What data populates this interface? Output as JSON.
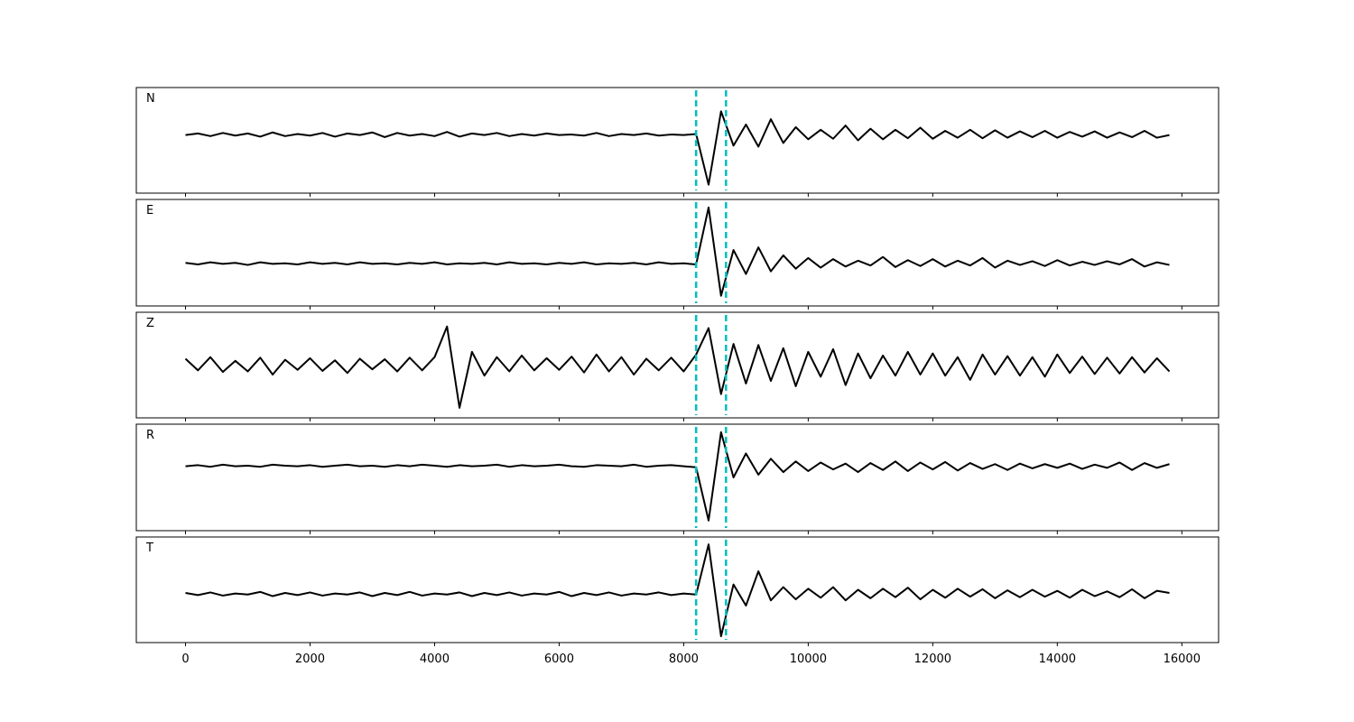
{
  "chart_data": {
    "type": "line",
    "x": [
      0,
      200,
      400,
      600,
      800,
      1000,
      1200,
      1400,
      1600,
      1800,
      2000,
      2200,
      2400,
      2600,
      2800,
      3000,
      3200,
      3400,
      3600,
      3800,
      4000,
      4200,
      4400,
      4600,
      4800,
      5000,
      5200,
      5400,
      5600,
      5800,
      6000,
      6200,
      6400,
      6600,
      6800,
      7000,
      7200,
      7400,
      7600,
      7800,
      8000,
      8200,
      8400,
      8600,
      8800,
      9000,
      9200,
      9400,
      9600,
      9800,
      10000,
      10200,
      10400,
      10600,
      10800,
      11000,
      11200,
      11400,
      11600,
      11800,
      12000,
      12200,
      12400,
      12600,
      12800,
      13000,
      13200,
      13400,
      13600,
      13800,
      14000,
      14200,
      14400,
      14600,
      14800,
      15000,
      15200,
      15400,
      15600,
      15800
    ],
    "xlim": [
      -790,
      16590
    ],
    "xticks": [
      0,
      2000,
      4000,
      6000,
      8000,
      10000,
      12000,
      14000,
      16000
    ],
    "ylim": [
      -1,
      1
    ],
    "vlines": [
      8200,
      8680
    ],
    "vline_color": "#00bfbf",
    "series": [
      {
        "name": "N",
        "color": "#000000",
        "values": [
          0.1,
          0.13,
          0.08,
          0.14,
          0.09,
          0.13,
          0.07,
          0.15,
          0.08,
          0.12,
          0.09,
          0.14,
          0.07,
          0.13,
          0.1,
          0.15,
          0.06,
          0.14,
          0.09,
          0.12,
          0.08,
          0.16,
          0.07,
          0.13,
          0.1,
          0.14,
          0.08,
          0.12,
          0.09,
          0.13,
          0.1,
          0.11,
          0.09,
          0.14,
          0.08,
          0.12,
          0.1,
          0.13,
          0.09,
          0.11,
          0.1,
          0.12,
          -0.84,
          0.55,
          -0.1,
          0.3,
          -0.12,
          0.4,
          -0.05,
          0.25,
          0.02,
          0.2,
          0.03,
          0.28,
          0.0,
          0.22,
          0.02,
          0.2,
          0.04,
          0.24,
          0.03,
          0.18,
          0.05,
          0.2,
          0.04,
          0.19,
          0.05,
          0.17,
          0.06,
          0.18,
          0.05,
          0.16,
          0.07,
          0.17,
          0.05,
          0.15,
          0.06,
          0.18,
          0.05,
          0.1
        ]
      },
      {
        "name": "E",
        "color": "#000000",
        "values": [
          -0.19,
          -0.22,
          -0.18,
          -0.21,
          -0.19,
          -0.23,
          -0.18,
          -0.21,
          -0.2,
          -0.22,
          -0.18,
          -0.21,
          -0.19,
          -0.22,
          -0.18,
          -0.21,
          -0.2,
          -0.22,
          -0.19,
          -0.21,
          -0.18,
          -0.22,
          -0.2,
          -0.21,
          -0.19,
          -0.22,
          -0.18,
          -0.21,
          -0.2,
          -0.22,
          -0.19,
          -0.21,
          -0.18,
          -0.22,
          -0.2,
          -0.21,
          -0.19,
          -0.22,
          -0.18,
          -0.21,
          -0.2,
          -0.22,
          0.85,
          -0.81,
          0.05,
          -0.4,
          0.1,
          -0.35,
          -0.05,
          -0.3,
          -0.1,
          -0.28,
          -0.12,
          -0.26,
          -0.15,
          -0.24,
          -0.08,
          -0.27,
          -0.14,
          -0.25,
          -0.12,
          -0.26,
          -0.15,
          -0.24,
          -0.1,
          -0.28,
          -0.15,
          -0.23,
          -0.16,
          -0.25,
          -0.14,
          -0.24,
          -0.17,
          -0.23,
          -0.16,
          -0.22,
          -0.12,
          -0.26,
          -0.18,
          -0.23
        ]
      },
      {
        "name": "Z",
        "color": "#000000",
        "values": [
          0.12,
          -0.1,
          0.15,
          -0.13,
          0.08,
          -0.12,
          0.14,
          -0.18,
          0.1,
          -0.09,
          0.13,
          -0.11,
          0.09,
          -0.15,
          0.12,
          -0.08,
          0.11,
          -0.12,
          0.14,
          -0.1,
          0.15,
          0.73,
          -0.81,
          0.25,
          -0.2,
          0.15,
          -0.12,
          0.18,
          -0.1,
          0.13,
          -0.09,
          0.16,
          -0.14,
          0.2,
          -0.12,
          0.15,
          -0.18,
          0.12,
          -0.1,
          0.14,
          -0.12,
          0.2,
          0.7,
          -0.55,
          0.4,
          -0.35,
          0.38,
          -0.3,
          0.32,
          -0.4,
          0.25,
          -0.22,
          0.3,
          -0.38,
          0.22,
          -0.25,
          0.18,
          -0.2,
          0.25,
          -0.18,
          0.22,
          -0.2,
          0.15,
          -0.28,
          0.2,
          -0.18,
          0.17,
          -0.2,
          0.15,
          -0.22,
          0.2,
          -0.15,
          0.16,
          -0.17,
          0.14,
          -0.16,
          0.15,
          -0.14,
          0.13,
          -0.12
        ]
      },
      {
        "name": "R",
        "color": "#000000",
        "values": [
          0.21,
          0.23,
          0.2,
          0.24,
          0.21,
          0.22,
          0.2,
          0.24,
          0.22,
          0.21,
          0.23,
          0.2,
          0.22,
          0.24,
          0.21,
          0.22,
          0.2,
          0.23,
          0.21,
          0.24,
          0.22,
          0.2,
          0.23,
          0.21,
          0.22,
          0.24,
          0.2,
          0.23,
          0.21,
          0.22,
          0.24,
          0.21,
          0.2,
          0.23,
          0.22,
          0.21,
          0.24,
          0.2,
          0.22,
          0.23,
          0.21,
          0.19,
          -0.81,
          0.85,
          0.0,
          0.45,
          0.05,
          0.35,
          0.1,
          0.3,
          0.12,
          0.28,
          0.15,
          0.26,
          0.1,
          0.27,
          0.14,
          0.3,
          0.12,
          0.28,
          0.15,
          0.29,
          0.13,
          0.27,
          0.16,
          0.25,
          0.14,
          0.26,
          0.17,
          0.25,
          0.18,
          0.26,
          0.16,
          0.24,
          0.18,
          0.28,
          0.14,
          0.27,
          0.18,
          0.25
        ]
      },
      {
        "name": "T",
        "color": "#000000",
        "values": [
          -0.06,
          -0.1,
          -0.05,
          -0.11,
          -0.07,
          -0.09,
          -0.04,
          -0.12,
          -0.06,
          -0.1,
          -0.05,
          -0.11,
          -0.07,
          -0.09,
          -0.05,
          -0.12,
          -0.06,
          -0.1,
          -0.04,
          -0.11,
          -0.07,
          -0.09,
          -0.05,
          -0.12,
          -0.06,
          -0.1,
          -0.05,
          -0.11,
          -0.07,
          -0.09,
          -0.04,
          -0.12,
          -0.06,
          -0.1,
          -0.05,
          -0.11,
          -0.07,
          -0.09,
          -0.05,
          -0.1,
          -0.07,
          -0.09,
          0.86,
          -0.88,
          0.1,
          -0.3,
          0.35,
          -0.2,
          0.05,
          -0.18,
          0.02,
          -0.15,
          0.05,
          -0.2,
          0.0,
          -0.16,
          0.02,
          -0.14,
          0.04,
          -0.18,
          0.0,
          -0.15,
          0.02,
          -0.13,
          0.01,
          -0.16,
          -0.01,
          -0.14,
          0.0,
          -0.13,
          -0.02,
          -0.15,
          0.0,
          -0.12,
          -0.03,
          -0.14,
          0.01,
          -0.16,
          -0.02,
          -0.06
        ]
      }
    ]
  }
}
